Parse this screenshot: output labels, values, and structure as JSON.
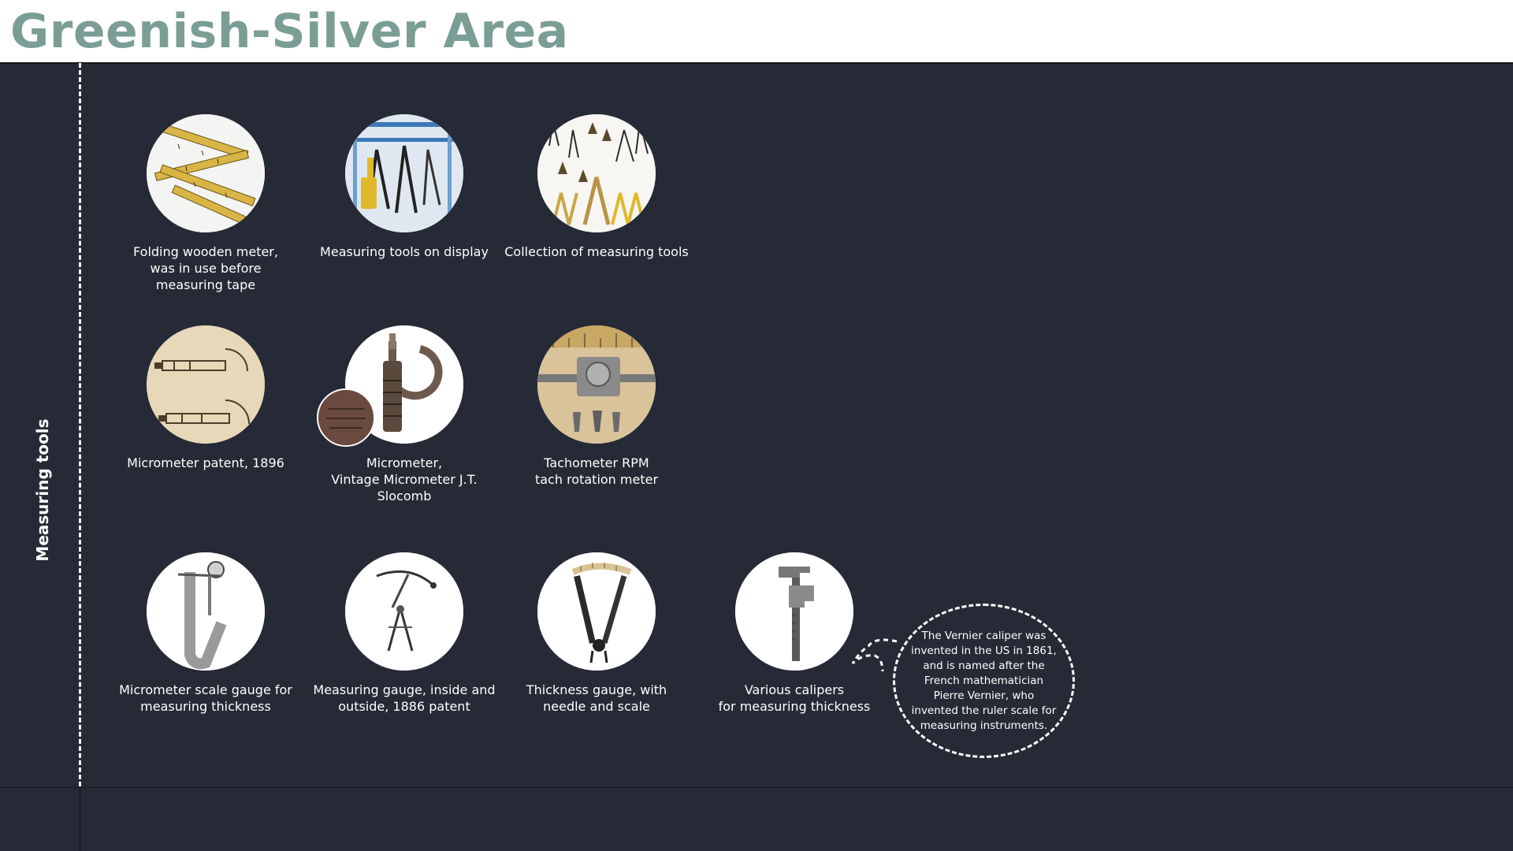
{
  "header": {
    "title": "Greenish-Silver Area"
  },
  "sidebar": {
    "label": "Measuring tools"
  },
  "tools": [
    {
      "caption": "Folding wooden meter,\nwas in use before\nmeasuring tape",
      "icon": "folding-ruler-icon"
    },
    {
      "caption": "Measuring tools on display",
      "icon": "tools-display-icon"
    },
    {
      "caption": "Collection of measuring tools",
      "icon": "tools-collection-icon"
    },
    {
      "caption": "Micrometer patent, 1896",
      "icon": "patent-drawing-icon"
    },
    {
      "caption": "Micrometer,\nVintage Micrometer J.T. Slocomb",
      "icon": "micrometer-icon"
    },
    {
      "caption": "Tachometer RPM\ntach rotation meter",
      "icon": "tachometer-icon"
    },
    {
      "caption": "Micrometer scale gauge for\nmeasuring thickness",
      "icon": "scale-gauge-icon"
    },
    {
      "caption": "Measuring gauge, inside and\noutside, 1886 patent",
      "icon": "divider-compass-icon"
    },
    {
      "caption": "Thickness gauge, with\nneedle and scale",
      "icon": "thickness-gauge-icon"
    },
    {
      "caption": "Various calipers\nfor measuring thickness",
      "icon": "vernier-caliper-icon"
    }
  ],
  "callout": {
    "text": "The Vernier caliper  was invented in the US in 1861, and  is named after the French mathematician Pierre Vernier, who invented the ruler scale for measuring instruments."
  },
  "colors": {
    "background": "#262a36",
    "title": "#7a9e96",
    "header_bg": "#ffffff",
    "text": "#ffffff"
  }
}
